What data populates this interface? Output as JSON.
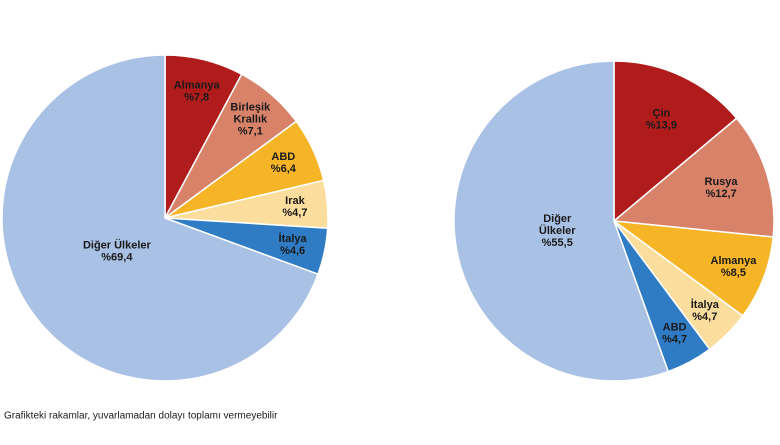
{
  "chart_data": [
    {
      "type": "pie",
      "categories": [
        "Almanya",
        "Birleşik Krallık",
        "ABD",
        "Irak",
        "İtalya",
        "Diğer Ülkeler"
      ],
      "values": [
        7.8,
        7.1,
        6.4,
        4.7,
        4.6,
        69.4
      ],
      "value_labels": [
        "%7,8",
        "%7,1",
        "%6,4",
        "%4,7",
        "%4,6",
        "%69,4"
      ],
      "colors": [
        "#b01c1c",
        "#d9826a",
        "#f6b526",
        "#fbdd9e",
        "#2f7cc4",
        "#a8c1e5"
      ]
    },
    {
      "type": "pie",
      "categories": [
        "Çin",
        "Rusya",
        "Almanya",
        "İtalya",
        "ABD",
        "Diğer Ülkeler"
      ],
      "values": [
        13.9,
        12.7,
        8.5,
        4.7,
        4.7,
        55.5
      ],
      "value_labels": [
        "%13,9",
        "%12,7",
        "%8,5",
        "%4,7",
        "%4,7",
        "%55,5"
      ],
      "colors": [
        "#b01c1c",
        "#d9826a",
        "#f6b526",
        "#fbdd9e",
        "#2f7cc4",
        "#a8c1e5"
      ]
    }
  ],
  "note": "Grafikteki rakamlar, yuvarlamadan dolayı toplamı vermeyebilir"
}
